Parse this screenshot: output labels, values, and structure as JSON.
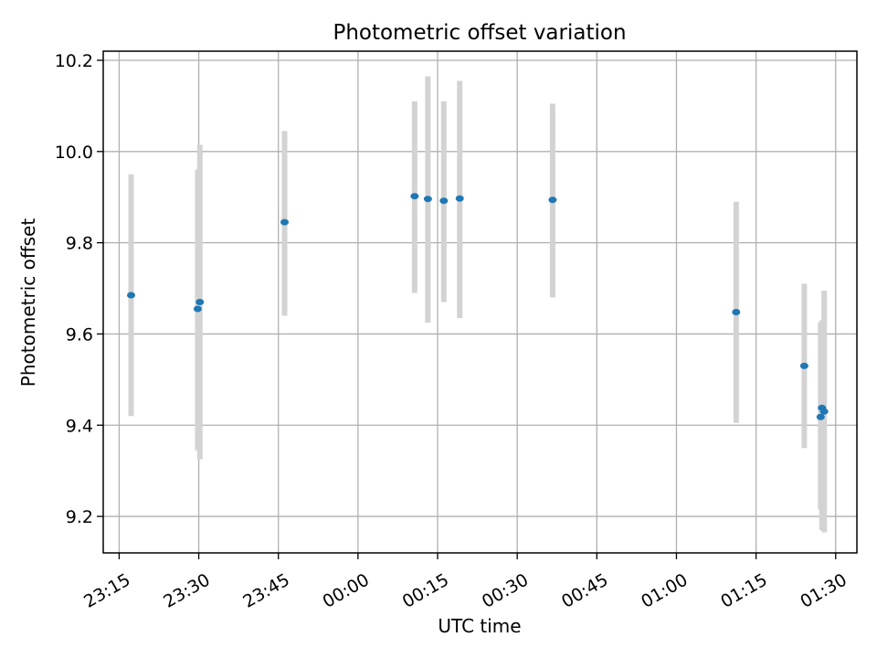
{
  "chart_data": {
    "type": "scatter",
    "title": "Photometric offset variation",
    "xlabel": "UTC time",
    "ylabel": "Photometric offset",
    "x_ticks": [
      "23:15",
      "23:30",
      "23:45",
      "00:00",
      "00:15",
      "00:30",
      "00:45",
      "01:00",
      "01:15",
      "01:30"
    ],
    "y_ticks": [
      "9.2",
      "9.4",
      "9.6",
      "9.8",
      "10.0",
      "10.2"
    ],
    "x_range": [
      "23:12",
      "01:34"
    ],
    "ylim": [
      9.12,
      10.22
    ],
    "grid": true,
    "points": [
      {
        "time": "23:17:15",
        "value": 9.685,
        "err_low": 9.42,
        "err_high": 9.95
      },
      {
        "time": "23:29:48",
        "value": 9.655,
        "err_low": 9.345,
        "err_high": 9.96
      },
      {
        "time": "23:30:12",
        "value": 9.67,
        "err_low": 9.325,
        "err_high": 10.015
      },
      {
        "time": "23:46:10",
        "value": 9.845,
        "err_low": 9.64,
        "err_high": 10.045
      },
      {
        "time": "00:10:40",
        "value": 9.902,
        "err_low": 9.69,
        "err_high": 10.11
      },
      {
        "time": "00:13:10",
        "value": 9.896,
        "err_low": 9.625,
        "err_high": 10.165
      },
      {
        "time": "00:16:10",
        "value": 9.892,
        "err_low": 9.67,
        "err_high": 10.11
      },
      {
        "time": "00:19:10",
        "value": 9.897,
        "err_low": 9.635,
        "err_high": 10.155
      },
      {
        "time": "00:36:40",
        "value": 9.894,
        "err_low": 9.68,
        "err_high": 10.105
      },
      {
        "time": "01:11:15",
        "value": 9.648,
        "err_low": 9.405,
        "err_high": 9.89
      },
      {
        "time": "01:24:05",
        "value": 9.53,
        "err_low": 9.35,
        "err_high": 9.71
      },
      {
        "time": "01:27:10",
        "value": 9.418,
        "err_low": 9.215,
        "err_high": 9.625
      },
      {
        "time": "01:27:25",
        "value": 9.438,
        "err_low": 9.17,
        "err_high": 9.63
      },
      {
        "time": "01:27:50",
        "value": 9.43,
        "err_low": 9.165,
        "err_high": 9.695
      }
    ],
    "colors": {
      "marker": "#1f77b4",
      "errorbar": "#d3d3d3",
      "grid": "#b0b0b0",
      "axis": "#000000"
    }
  }
}
